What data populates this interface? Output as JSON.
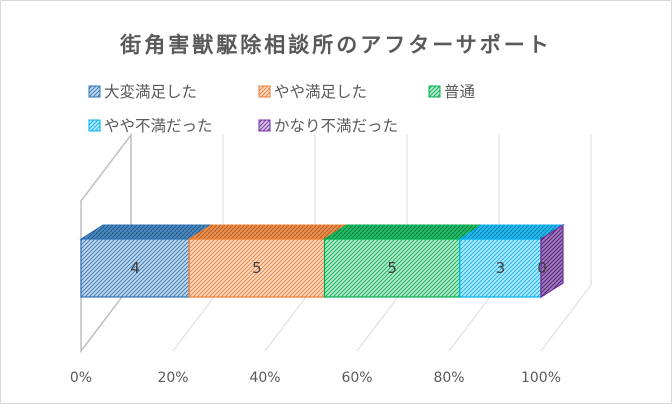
{
  "chart_data": {
    "type": "bar",
    "orientation": "horizontal-stacked-100",
    "title": "街角害獣駆除相談所のアフターサポート",
    "series": [
      {
        "name": "大変満足した",
        "value": 4,
        "color": "#2e75b6"
      },
      {
        "name": "やや満足した",
        "value": 5,
        "color": "#ed7d31"
      },
      {
        "name": "普通",
        "value": 5,
        "color": "#00b050"
      },
      {
        "name": "やや不満だった",
        "value": 3,
        "color": "#00b0f0"
      },
      {
        "name": "かなり不満だった",
        "value": 0,
        "color": "#7030a0"
      }
    ],
    "xticks": [
      "0%",
      "20%",
      "40%",
      "60%",
      "80%",
      "100%"
    ],
    "xlim": [
      0,
      100
    ],
    "legend": "top-left",
    "grid": true,
    "style": "3d-hatched"
  }
}
